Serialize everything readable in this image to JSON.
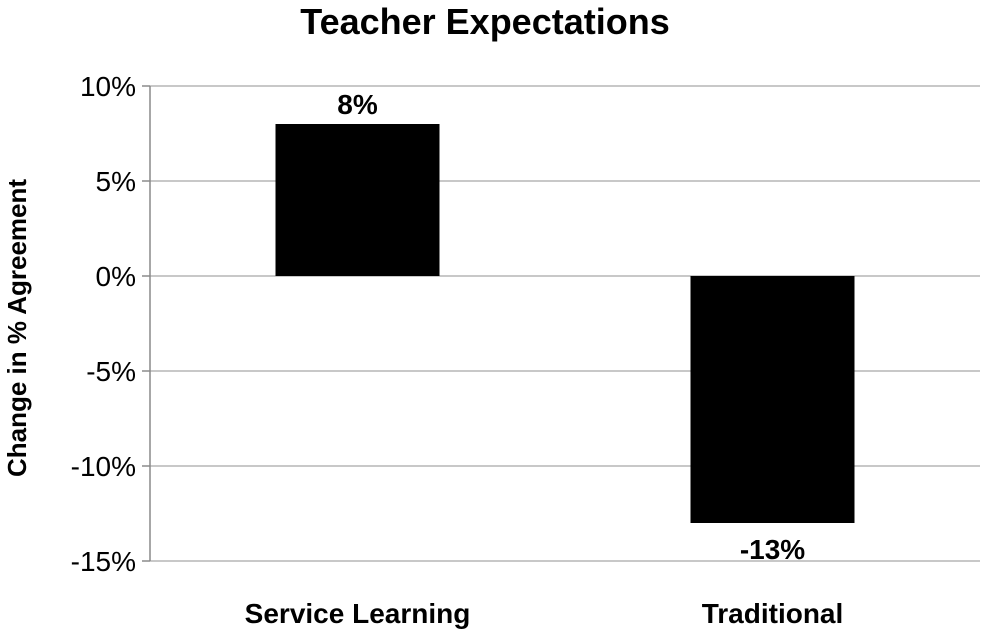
{
  "chart_data": {
    "type": "bar",
    "title": "Teacher Expectations",
    "ylabel": "Change in % Agreement",
    "xlabel": "",
    "categories": [
      "Service Learning",
      "Traditional"
    ],
    "values": [
      8,
      -13
    ],
    "data_labels": [
      "8%",
      "-13%"
    ],
    "ylim": [
      -15,
      10
    ],
    "yticks": [
      10,
      5,
      0,
      -5,
      -10,
      -15
    ],
    "ytick_labels": [
      "10%",
      "5%",
      "0%",
      "-5%",
      "-10%",
      "-15%"
    ],
    "grid": true,
    "legend": "none",
    "bar_color": "#000000"
  }
}
